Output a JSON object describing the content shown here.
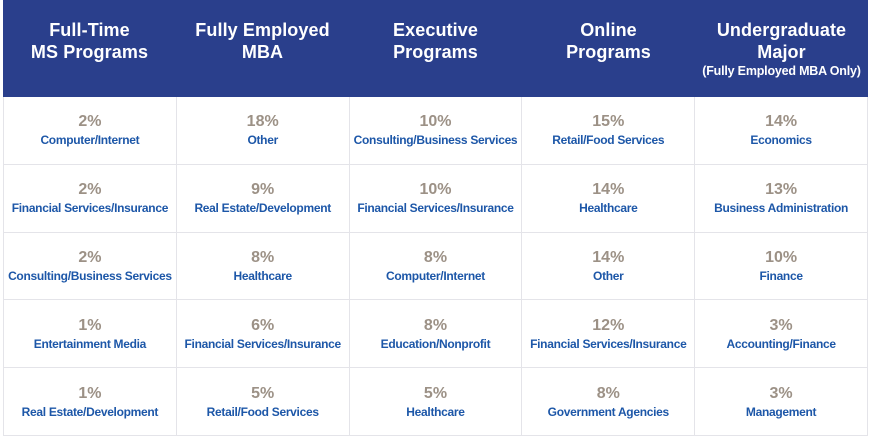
{
  "colors": {
    "header_background": "#2A3F8C",
    "header_text": "#FFFFFF",
    "percentage_text": "#9C9186",
    "category_text": "#1D57A8",
    "grid_border": "#E4E4E9",
    "page_background": "#FFFFFF"
  },
  "chart_data": {
    "type": "table",
    "title": "",
    "legend_position": "none",
    "grid": true,
    "columns": [
      {
        "header": "Full-Time\nMS Programs",
        "subheader": "",
        "rows": [
          {
            "pct": "2%",
            "label": "Computer/Internet"
          },
          {
            "pct": "2%",
            "label": "Financial Services/Insurance"
          },
          {
            "pct": "2%",
            "label": "Consulting/Business Services"
          },
          {
            "pct": "1%",
            "label": "Entertainment Media"
          },
          {
            "pct": "1%",
            "label": "Real Estate/Development"
          }
        ]
      },
      {
        "header": "Fully Employed\nMBA",
        "subheader": "",
        "rows": [
          {
            "pct": "18%",
            "label": "Other"
          },
          {
            "pct": "9%",
            "label": "Real Estate/Development"
          },
          {
            "pct": "8%",
            "label": "Healthcare"
          },
          {
            "pct": "6%",
            "label": "Financial Services/Insurance"
          },
          {
            "pct": "5%",
            "label": "Retail/Food Services"
          }
        ]
      },
      {
        "header": "Executive\nPrograms",
        "subheader": "",
        "rows": [
          {
            "pct": "10%",
            "label": "Consulting/Business Services"
          },
          {
            "pct": "10%",
            "label": "Financial Services/Insurance"
          },
          {
            "pct": "8%",
            "label": "Computer/Internet"
          },
          {
            "pct": "8%",
            "label": "Education/Nonprofit"
          },
          {
            "pct": "5%",
            "label": "Healthcare"
          }
        ]
      },
      {
        "header": "Online\nPrograms",
        "subheader": "",
        "rows": [
          {
            "pct": "15%",
            "label": "Retail/Food Services"
          },
          {
            "pct": "14%",
            "label": "Healthcare"
          },
          {
            "pct": "14%",
            "label": "Other"
          },
          {
            "pct": "12%",
            "label": "Financial Services/Insurance"
          },
          {
            "pct": "8%",
            "label": "Government Agencies"
          }
        ]
      },
      {
        "header": "Undergraduate\nMajor",
        "subheader": "(Fully Employed MBA Only)",
        "rows": [
          {
            "pct": "14%",
            "label": "Economics"
          },
          {
            "pct": "13%",
            "label": "Business Administration"
          },
          {
            "pct": "10%",
            "label": "Finance"
          },
          {
            "pct": "3%",
            "label": "Accounting/Finance"
          },
          {
            "pct": "3%",
            "label": "Management"
          }
        ]
      }
    ]
  }
}
